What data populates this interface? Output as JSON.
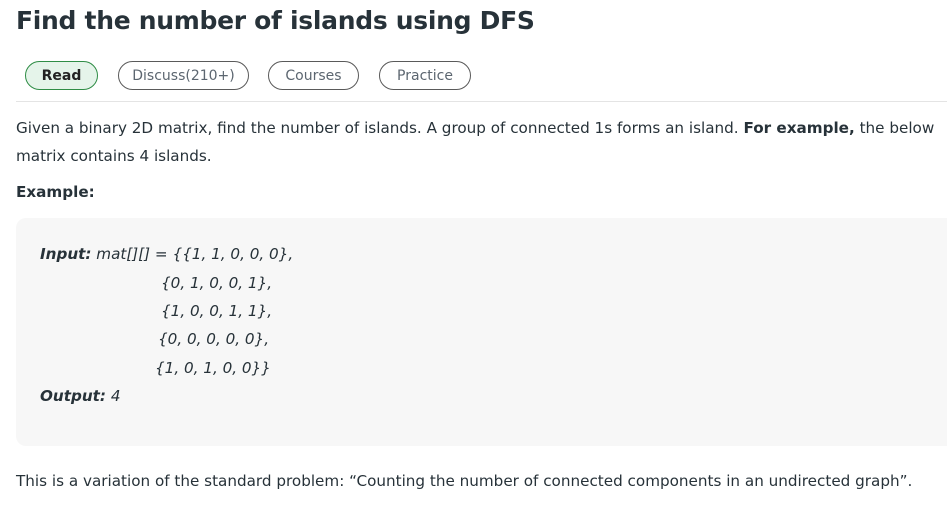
{
  "article": {
    "title": "Find the number of islands using DFS"
  },
  "tabs": [
    {
      "label": "Read",
      "active": true
    },
    {
      "label": "Discuss(210+)",
      "active": false
    },
    {
      "label": "Courses",
      "active": false
    },
    {
      "label": "Practice",
      "active": false
    }
  ],
  "intro": {
    "text_before": "Given a binary 2D matrix, find the number of islands. A group of connected 1s forms an island. ",
    "bold": "For example,",
    "text_after": " the below matrix contains 4 islands."
  },
  "example": {
    "heading": "Example:",
    "input_label": "Input:",
    "input_first": " mat[][] = {{1, 1, 0, 0, 0},",
    "matrix_rows": [
      "{0, 1, 0, 0, 1},",
      "{1, 0, 0, 1, 1},",
      "{0, 0, 0, 0, 0},",
      "{1, 0, 1, 0, 0}}"
    ],
    "output_label": "Output:",
    "output_value": " 4"
  },
  "footer": {
    "text": "This is a variation of the standard problem: “Counting the number of connected components in an undirected graph”."
  },
  "colors": {
    "active_tab_bg": "#e5f4ea",
    "active_tab_border": "#2f8d46",
    "code_bg": "#f7f7f7",
    "text": "#273239"
  }
}
